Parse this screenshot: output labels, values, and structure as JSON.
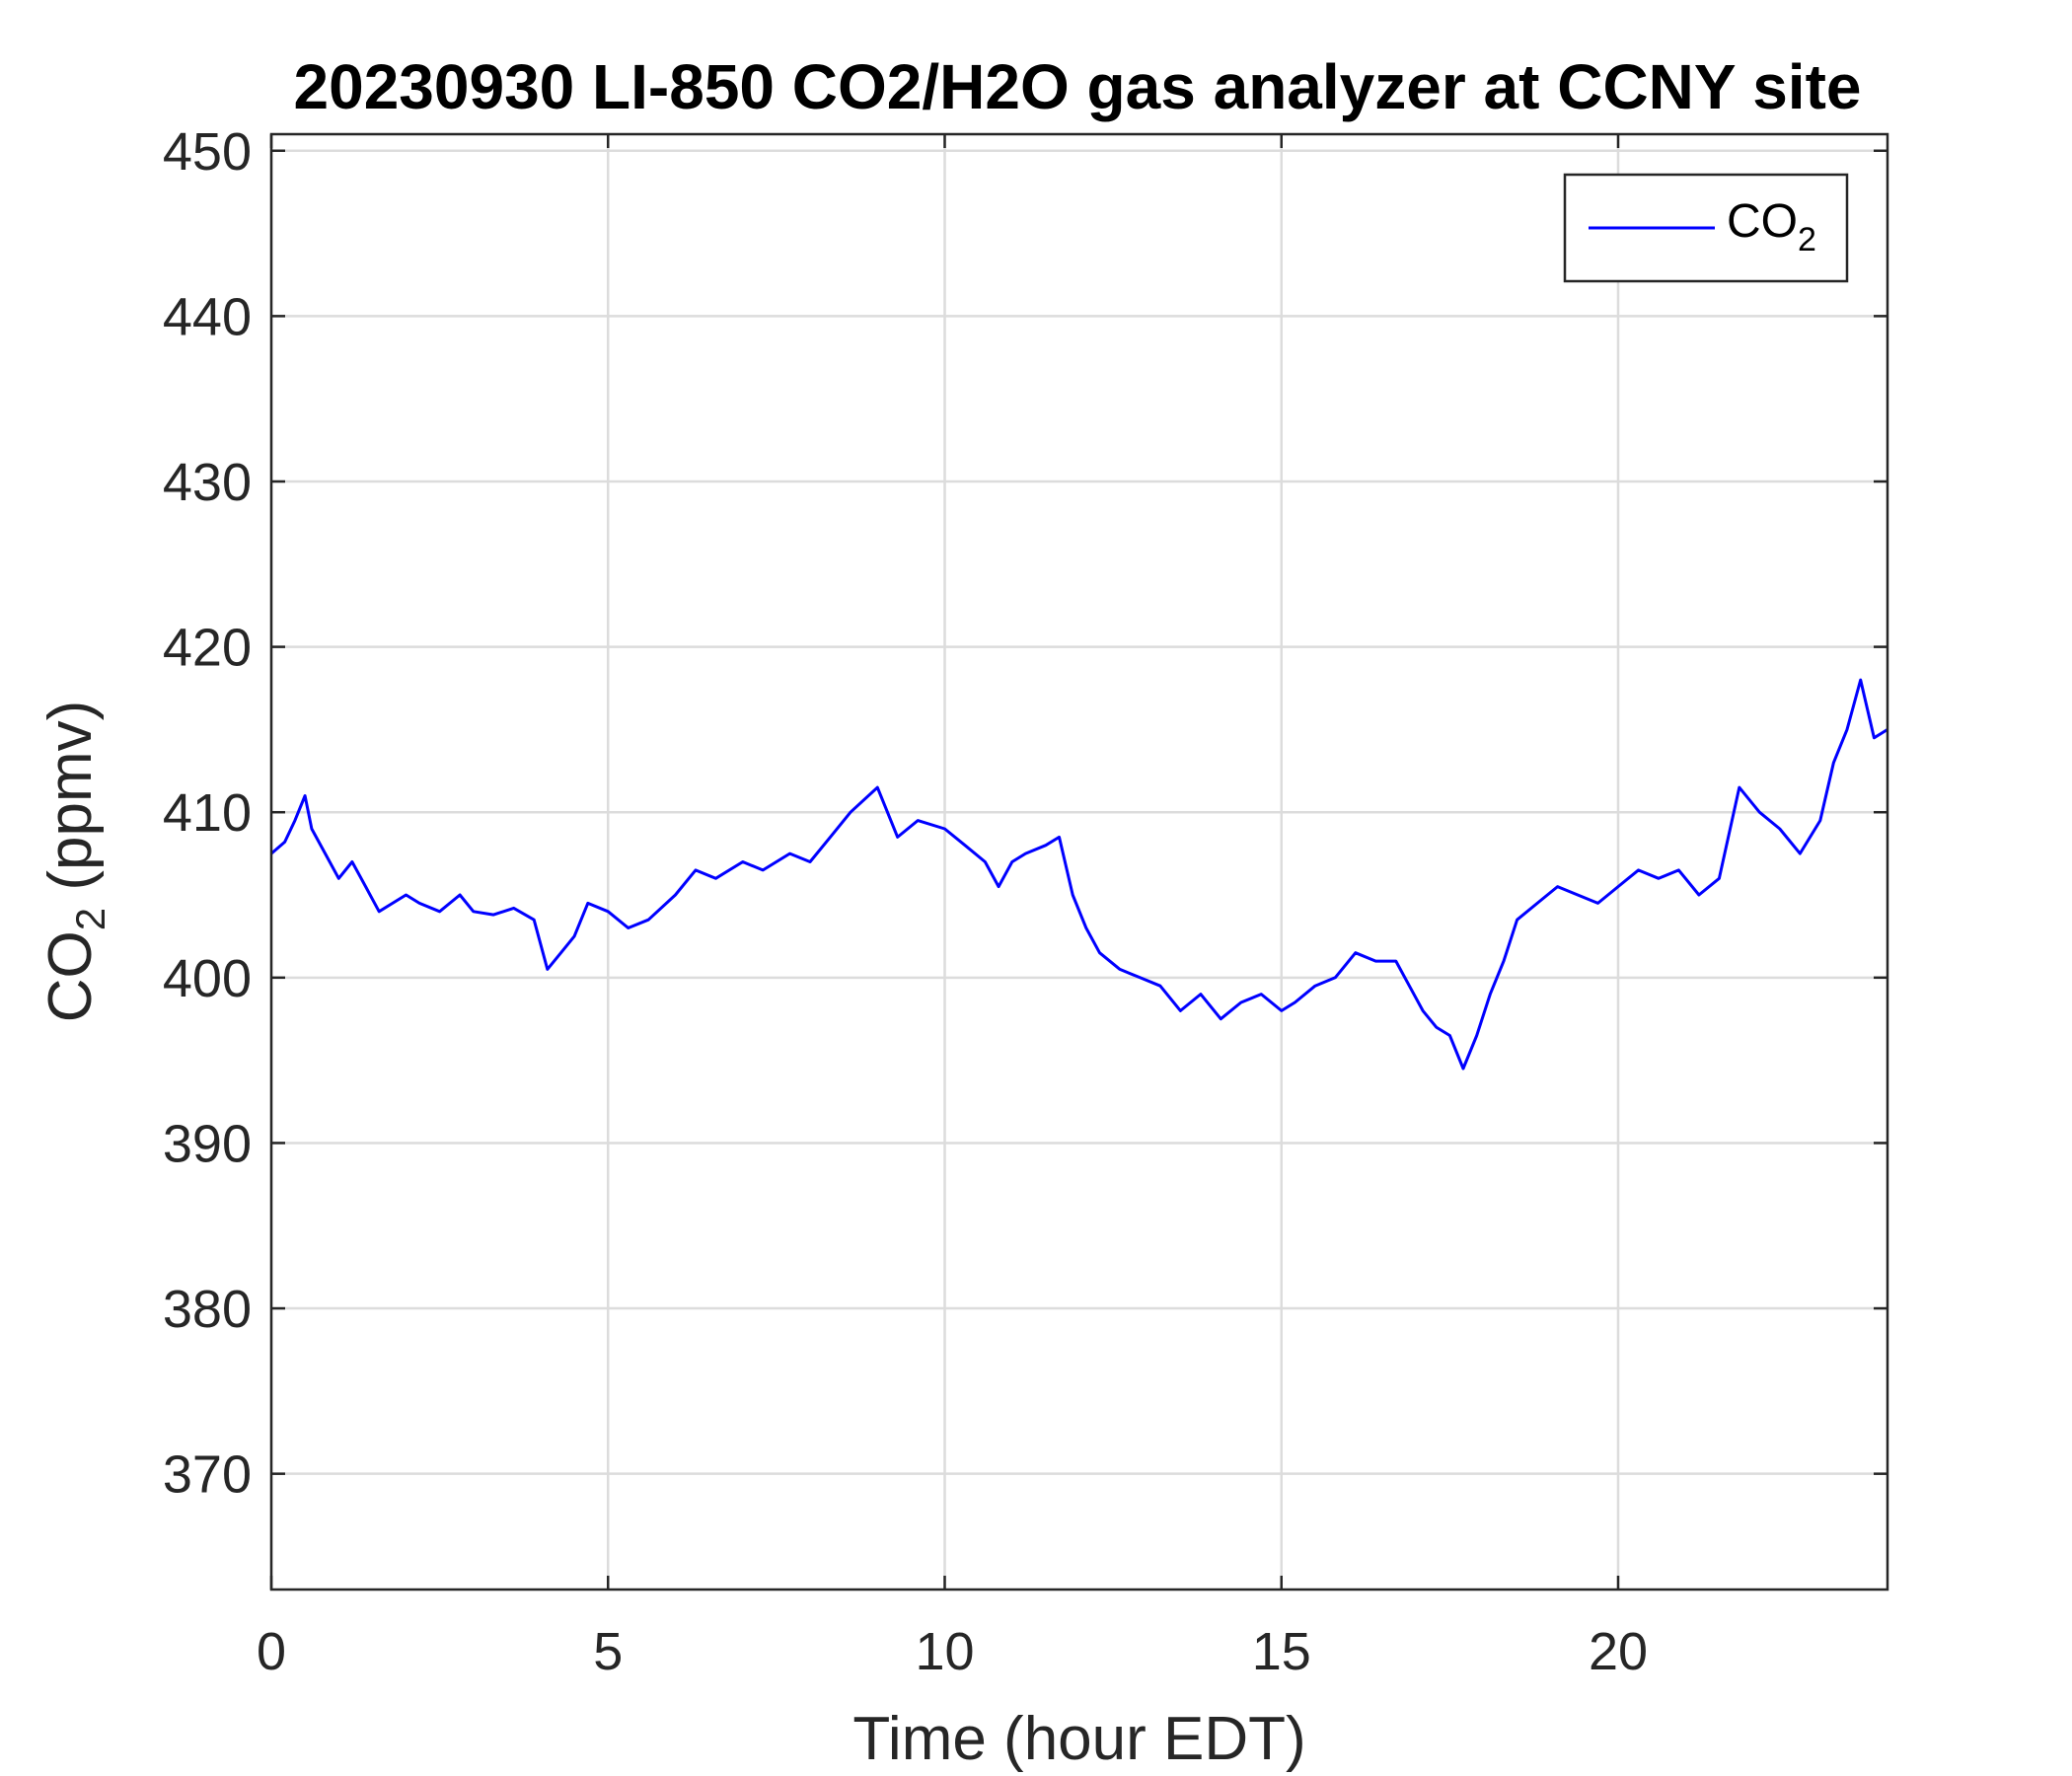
{
  "chart_data": {
    "type": "line",
    "title": "20230930 LI-850 CO2/H2O gas analyzer at CCNY site",
    "xlabel": "Time (hour EDT)",
    "ylabel": {
      "main": "CO",
      "sub": "2",
      "unit": " (ppmv)"
    },
    "xlim": [
      0,
      24
    ],
    "ylim": [
      363,
      451
    ],
    "xticks": [
      0,
      5,
      10,
      15,
      20
    ],
    "yticks": [
      370,
      380,
      390,
      400,
      410,
      420,
      430,
      440,
      450
    ],
    "grid": true,
    "legend": {
      "position": "top-right",
      "main": "CO",
      "sub": "2"
    },
    "series": [
      {
        "name": "CO2",
        "color": "#0000ff",
        "x": [
          0.0,
          0.2,
          0.35,
          0.5,
          0.6,
          0.8,
          1.0,
          1.2,
          1.4,
          1.6,
          1.8,
          2.0,
          2.2,
          2.5,
          2.8,
          3.0,
          3.3,
          3.6,
          3.9,
          4.1,
          4.3,
          4.5,
          4.7,
          5.0,
          5.3,
          5.6,
          6.0,
          6.3,
          6.6,
          7.0,
          7.3,
          7.7,
          8.0,
          8.3,
          8.6,
          9.0,
          9.3,
          9.6,
          10.0,
          10.3,
          10.6,
          10.8,
          11.0,
          11.2,
          11.5,
          11.7,
          11.9,
          12.1,
          12.3,
          12.6,
          12.9,
          13.2,
          13.5,
          13.8,
          14.1,
          14.4,
          14.7,
          15.0,
          15.2,
          15.5,
          15.8,
          16.1,
          16.4,
          16.7,
          16.9,
          17.1,
          17.3,
          17.5,
          17.7,
          17.9,
          18.1,
          18.3,
          18.5,
          18.8,
          19.1,
          19.4,
          19.7,
          20.0,
          20.3,
          20.6,
          20.9,
          21.2,
          21.5,
          21.8,
          22.1,
          22.4,
          22.7,
          23.0,
          23.2,
          23.4,
          23.6,
          23.8,
          24.0
        ],
        "y": [
          407.5,
          408.2,
          409.5,
          411.0,
          409.0,
          407.5,
          406.0,
          407.0,
          405.5,
          404.0,
          404.5,
          405.0,
          404.5,
          404.0,
          405.0,
          404.0,
          403.8,
          404.2,
          403.5,
          400.5,
          401.5,
          402.5,
          404.5,
          404.0,
          403.0,
          403.5,
          405.0,
          406.5,
          406.0,
          407.0,
          406.5,
          407.5,
          407.0,
          408.5,
          410.0,
          411.5,
          408.5,
          409.5,
          409.0,
          408.0,
          407.0,
          405.5,
          407.0,
          407.5,
          408.0,
          408.5,
          405.0,
          403.0,
          401.5,
          400.5,
          400.0,
          399.5,
          398.0,
          399.0,
          397.5,
          398.5,
          399.0,
          398.0,
          398.5,
          399.5,
          400.0,
          401.5,
          401.0,
          401.0,
          399.5,
          398.0,
          397.0,
          396.5,
          394.5,
          396.5,
          399.0,
          401.0,
          403.5,
          404.5,
          405.5,
          405.0,
          404.5,
          405.5,
          406.5,
          406.0,
          406.5,
          405.0,
          406.0,
          411.5,
          410.0,
          409.0,
          407.5,
          409.5,
          413.0,
          415.0,
          418.0,
          414.5,
          415.0
        ]
      }
    ]
  }
}
